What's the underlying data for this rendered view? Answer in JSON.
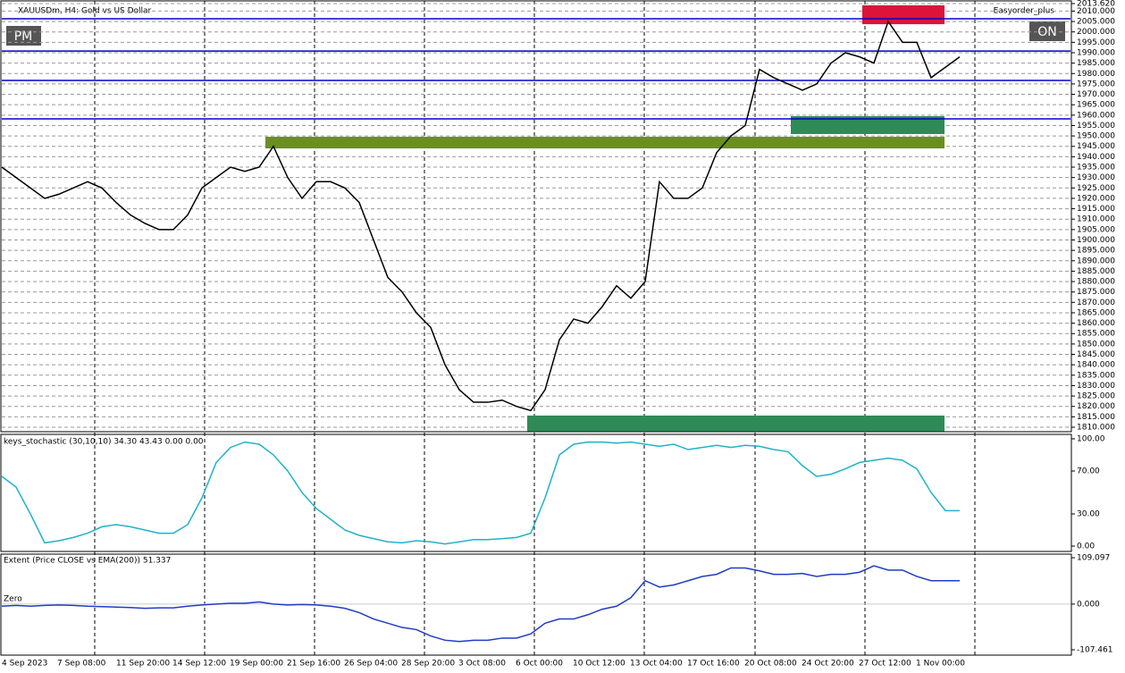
{
  "header": {
    "symbol": "XAUUSDm, H4:  Gold vs US Dollar",
    "expert": "Easyorder_plus"
  },
  "buttons": {
    "left": "PM",
    "right": "ON"
  },
  "price_chart": {
    "type": "line",
    "ylim": [
      1807.85,
      2013.62
    ],
    "yticks": [
      {
        "value": 1810,
        "label": "1810.000"
      },
      {
        "value": 1815,
        "label": "1815.000"
      },
      {
        "value": 1820,
        "label": "1820.000"
      },
      {
        "value": 1825,
        "label": "1825.000"
      },
      {
        "value": 1830,
        "label": "1830.000"
      },
      {
        "value": 1835,
        "label": "1835.000"
      },
      {
        "value": 1840,
        "label": "1840.000"
      },
      {
        "value": 1845,
        "label": "1845.000"
      },
      {
        "value": 1850,
        "label": "1850.000"
      },
      {
        "value": 1855,
        "label": "1855.000"
      },
      {
        "value": 1860,
        "label": "1860.000"
      },
      {
        "value": 1865,
        "label": "1865.000"
      },
      {
        "value": 1870,
        "label": "1870.000"
      },
      {
        "value": 1875,
        "label": "1875.000"
      },
      {
        "value": 1880,
        "label": "1880.000"
      },
      {
        "value": 1885,
        "label": "1885.000"
      },
      {
        "value": 1890,
        "label": "1890.000"
      },
      {
        "value": 1895,
        "label": "1895.000"
      },
      {
        "value": 1900,
        "label": "1900.000"
      },
      {
        "value": 1905,
        "label": "1905.000"
      },
      {
        "value": 1910,
        "label": "1910.000"
      },
      {
        "value": 1915,
        "label": "1915.000"
      },
      {
        "value": 1920,
        "label": "1920.000"
      },
      {
        "value": 1925,
        "label": "1925.000"
      },
      {
        "value": 1930,
        "label": "1930.000"
      },
      {
        "value": 1935,
        "label": "1935.000"
      },
      {
        "value": 1940,
        "label": "1940.000"
      },
      {
        "value": 1945,
        "label": "1945.000"
      },
      {
        "value": 1950,
        "label": "1950.000"
      },
      {
        "value": 1955,
        "label": "1955.000"
      },
      {
        "value": 1960,
        "label": "1960.000"
      },
      {
        "value": 1965,
        "label": "1965.000"
      },
      {
        "value": 1970,
        "label": "1970.000"
      },
      {
        "value": 1975,
        "label": "1975.000"
      },
      {
        "value": 1980,
        "label": "1980.000"
      },
      {
        "value": 1985,
        "label": "1985.000"
      },
      {
        "value": 1990,
        "label": "1990.000"
      },
      {
        "value": 1995,
        "label": "1995.000"
      },
      {
        "value": 2000,
        "label": "2000.000"
      },
      {
        "value": 2005,
        "label": "2005.000"
      },
      {
        "value": 2010,
        "label": "2010.000"
      },
      {
        "value": 2013.62,
        "label": "2013.620"
      }
    ],
    "series": [
      {
        "name": "Close",
        "color": "#000000",
        "values": [
          1935,
          1930,
          1925,
          1920,
          1922,
          1925,
          1928,
          1925,
          1918,
          1912,
          1908,
          1905,
          1905,
          1912,
          1925,
          1930,
          1935,
          1933,
          1935,
          1945,
          1930,
          1920,
          1928,
          1928,
          1925,
          1918,
          1900,
          1882,
          1875,
          1865,
          1858,
          1840,
          1828,
          1822,
          1822,
          1823,
          1820,
          1818,
          1828,
          1852,
          1862,
          1860,
          1868,
          1878,
          1872,
          1880,
          1928,
          1920,
          1920,
          1925,
          1942,
          1950,
          1955,
          1982,
          1978,
          1975,
          1972,
          1975,
          1985,
          1990,
          1988,
          1985,
          2005,
          1995,
          1995,
          1978,
          1983,
          1988
        ]
      }
    ],
    "levels": [
      2006.3,
      1990.8,
      1976.7,
      1958.2
    ],
    "zones": [
      {
        "low": 1944.0,
        "high": 1949.6,
        "color": "#6b8e23"
      },
      {
        "low": 1808,
        "high": 1815.6,
        "color": "#2e8b57"
      },
      {
        "low": 1950.9,
        "high": 1959.5,
        "color": "#2e8b57"
      },
      {
        "low": 2003.7,
        "high": 2012.8,
        "color": "#dc143c"
      }
    ]
  },
  "stochastic": {
    "type": "line",
    "title": "keys_stochastic (30,10,10) 34.30 43.43 0.00 0.00",
    "ylim": [
      0,
      100
    ],
    "yticks": [
      {
        "value": 100,
        "label": "100.00"
      },
      {
        "value": 70,
        "label": "70.00"
      },
      {
        "value": 30,
        "label": "30.00"
      },
      {
        "value": 0,
        "label": "0.00"
      }
    ],
    "series": [
      {
        "name": "Main",
        "color": "#20b2c8",
        "values": [
          65,
          55,
          30,
          3,
          5,
          8,
          12,
          18,
          20,
          18,
          15,
          12,
          12,
          20,
          45,
          78,
          92,
          97,
          95,
          85,
          70,
          50,
          35,
          25,
          15,
          10,
          7,
          4,
          3,
          5,
          4,
          2,
          4,
          6,
          6,
          7,
          8,
          12,
          45,
          85,
          95,
          97,
          97,
          96,
          97,
          95,
          93,
          95,
          90,
          92,
          94,
          92,
          94,
          93,
          90,
          88,
          75,
          65,
          67,
          72,
          78,
          80,
          82,
          80,
          72,
          50,
          33,
          33
        ]
      }
    ]
  },
  "extent": {
    "type": "line",
    "title": "Extent (Price CLOSE vs EMA(200)) 51.337",
    "zero_label": "Zero",
    "ylim": [
      -107.461,
      109.097
    ],
    "yticks": [
      {
        "value": 109.097,
        "label": "109.097"
      },
      {
        "value": 0,
        "label": "0.000"
      },
      {
        "value": -107.461,
        "label": "-107.461"
      }
    ],
    "series": [
      {
        "name": "Extent",
        "color": "#1e3cc8",
        "values": [
          -5,
          -3,
          -5,
          -3,
          -2,
          -3,
          -5,
          -6,
          -7,
          -8,
          -10,
          -9,
          -9,
          -5,
          -2,
          0,
          2,
          2,
          5,
          0,
          -2,
          -1,
          -2,
          -5,
          -10,
          -20,
          -35,
          -45,
          -55,
          -60,
          -75,
          -85,
          -88,
          -85,
          -85,
          -80,
          -80,
          -70,
          -45,
          -35,
          -35,
          -25,
          -12,
          -5,
          15,
          55,
          40,
          45,
          55,
          65,
          70,
          85,
          85,
          78,
          70,
          70,
          72,
          65,
          70,
          70,
          75,
          90,
          80,
          80,
          65,
          55,
          55,
          55
        ]
      }
    ]
  },
  "time_labels": [
    "4 Sep 2023",
    "7 Sep 08:00",
    "11 Sep 20:00",
    "14 Sep 12:00",
    "19 Sep 00:00",
    "21 Sep 16:00",
    "26 Sep 04:00",
    "28 Sep 20:00",
    "3 Oct 08:00",
    "6 Oct 00:00",
    "10 Oct 12:00",
    "13 Oct 04:00",
    "17 Oct 16:00",
    "20 Oct 08:00",
    "24 Oct 20:00",
    "27 Oct 12:00",
    "1 Nov 00:00"
  ]
}
